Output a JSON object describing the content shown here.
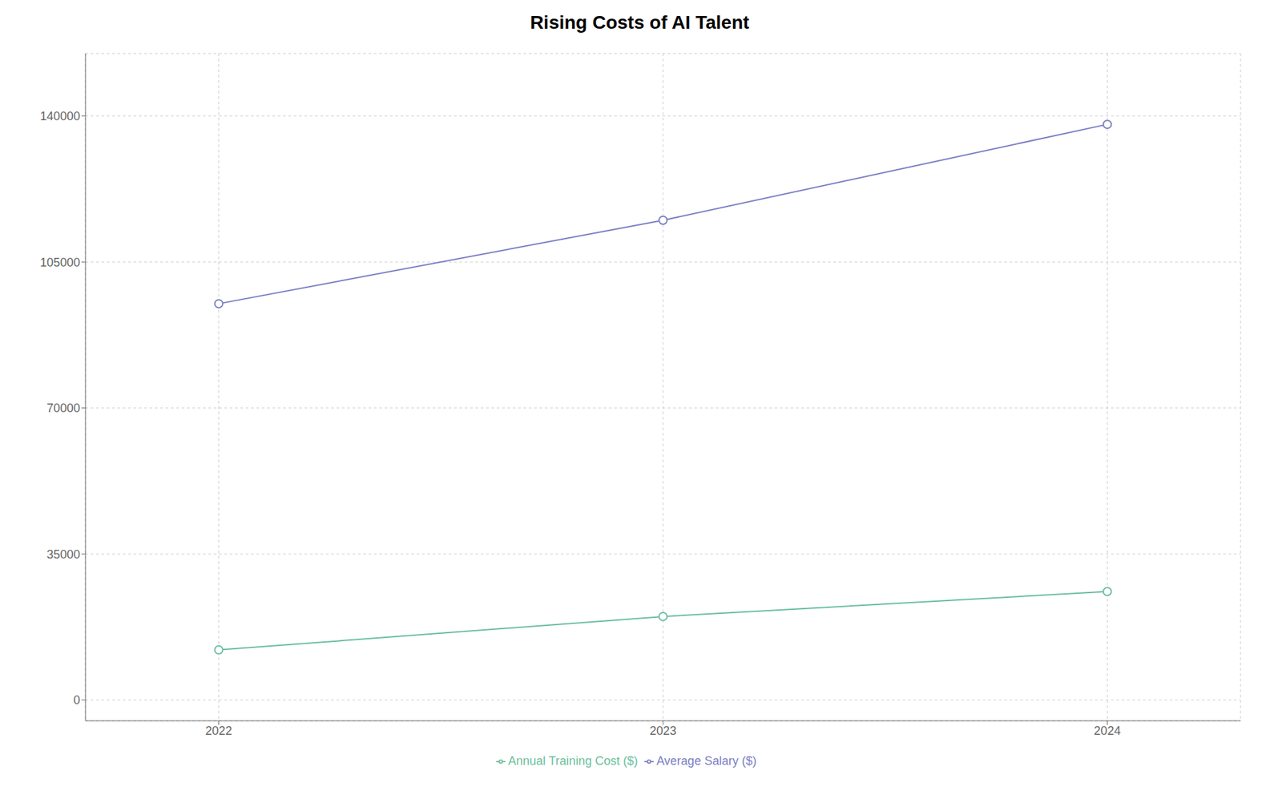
{
  "chart_data": {
    "type": "line",
    "title": "Rising Costs of AI Talent",
    "x": [
      2022,
      2023,
      2024
    ],
    "series": [
      {
        "name": "Average Salary ($)",
        "color": "#7b7fc4",
        "marker": "circle",
        "values": [
          95000,
          115000,
          138000
        ]
      },
      {
        "name": "Annual Training Cost ($)",
        "color": "#6abf9e",
        "marker": "circle",
        "values": [
          12000,
          20000,
          26000
        ]
      }
    ],
    "xlim": [
      2021.7,
      2024.3
    ],
    "xticks": [
      2022,
      2023,
      2024
    ],
    "ylim": [
      -5000,
      155000
    ],
    "yticks": [
      0,
      35000,
      70000,
      105000,
      140000
    ],
    "grid": true,
    "legend": "bottom"
  }
}
